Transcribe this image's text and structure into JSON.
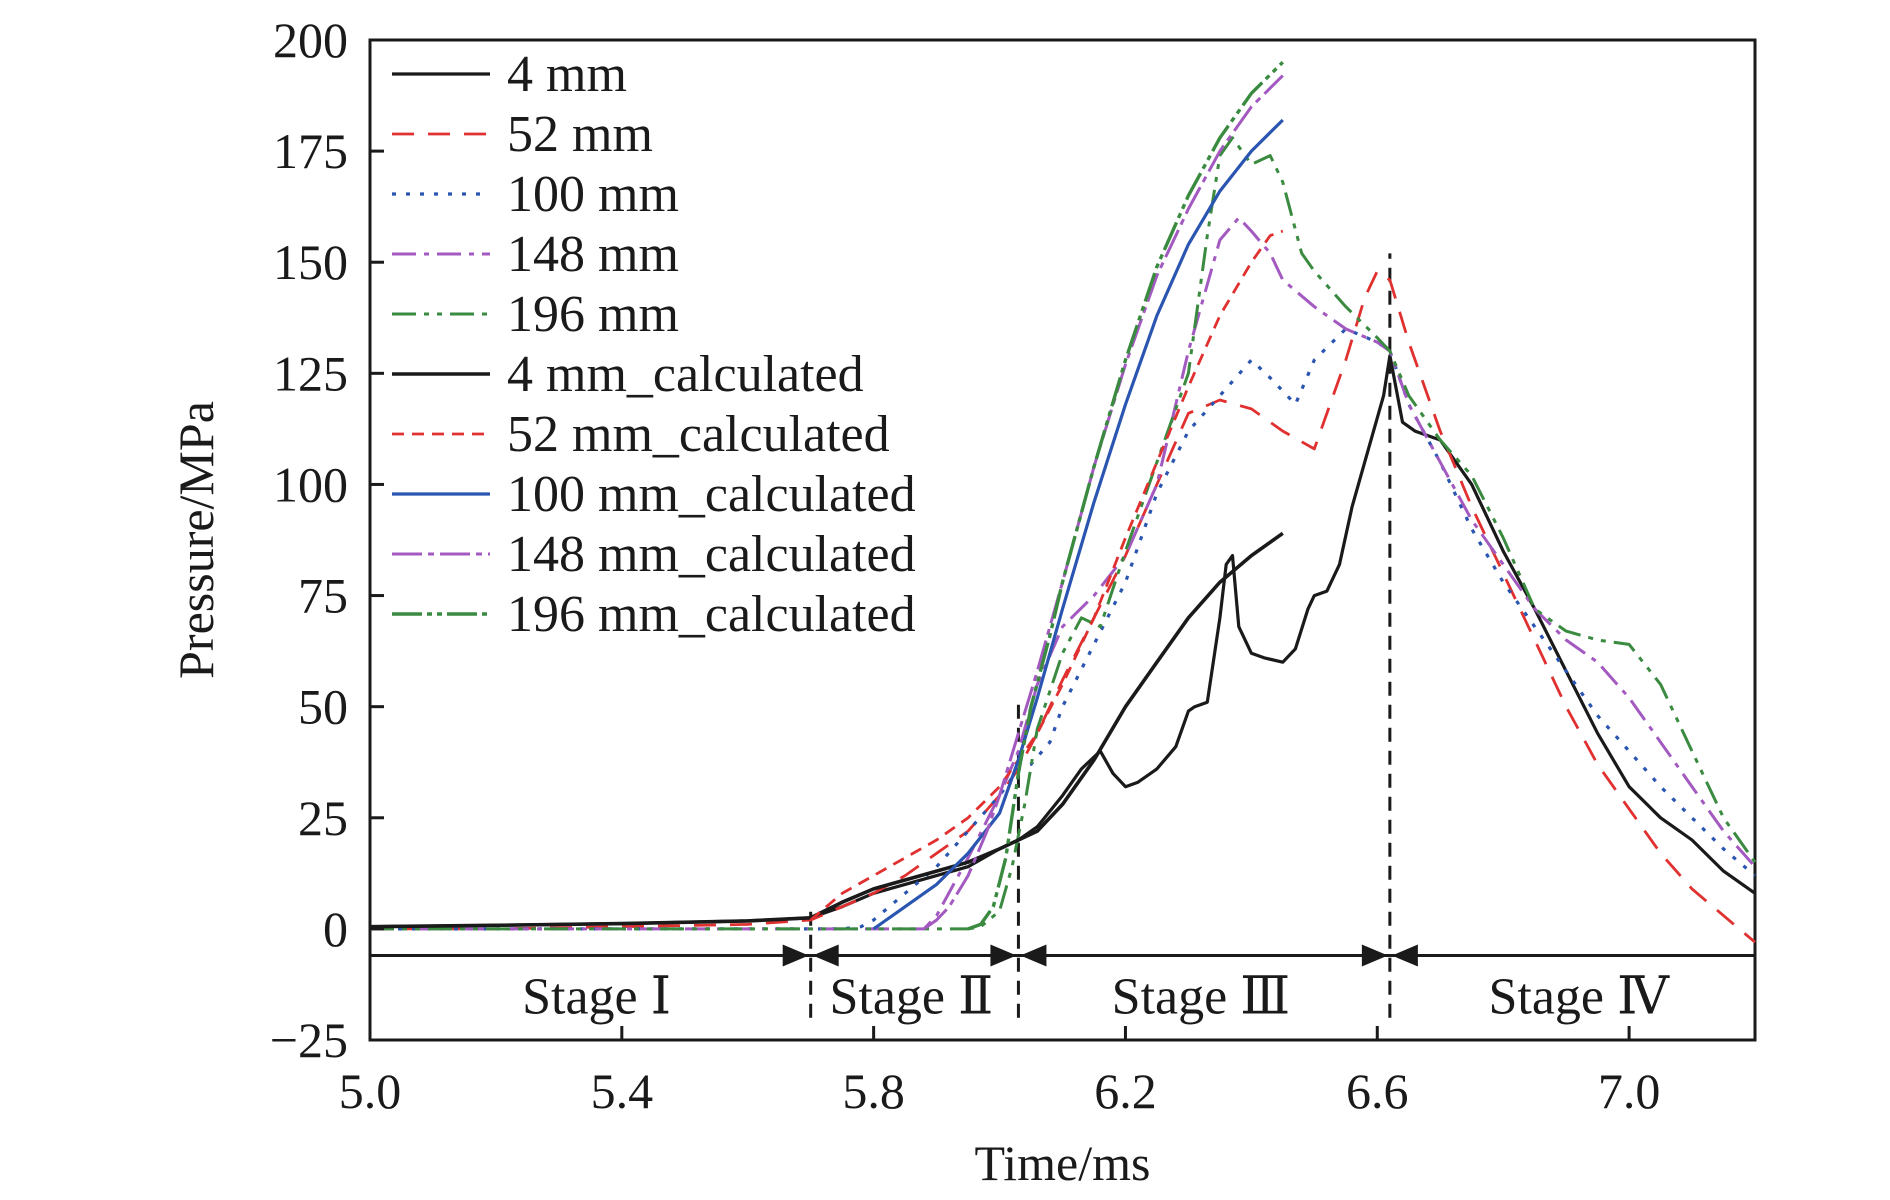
{
  "chart_data": {
    "type": "line",
    "xlabel": "Time/ms",
    "ylabel": "Pressure/MPa",
    "xlim": [
      5.0,
      7.2
    ],
    "ylim": [
      -25,
      200
    ],
    "xticks": [
      "5.0",
      "5.4",
      "5.8",
      "6.2",
      "6.6",
      "7.0"
    ],
    "xtick_values": [
      5.0,
      5.4,
      5.8,
      6.2,
      6.6,
      7.0
    ],
    "yticks": [
      "200",
      "175",
      "150",
      "125",
      "100",
      "75",
      "50",
      "25",
      "0",
      "−25"
    ],
    "ytick_values": [
      200,
      175,
      150,
      125,
      100,
      75,
      50,
      25,
      0,
      -25
    ],
    "grid": false,
    "legend_position": "top-left",
    "stages": {
      "boundaries": [
        5.7,
        6.03,
        6.62
      ],
      "arrow_y": -6,
      "labels": [
        {
          "text": "Stage Ⅰ",
          "x": 5.36
        },
        {
          "text": "Stage Ⅱ",
          "x": 5.86
        },
        {
          "text": "Stage Ⅲ",
          "x": 6.32
        },
        {
          "text": "Stage Ⅳ",
          "x": 6.92
        }
      ]
    },
    "vlines": [
      {
        "x": 5.7,
        "y_from": -20,
        "y_to": 5
      },
      {
        "x": 6.03,
        "y_from": -20,
        "y_to": 52
      },
      {
        "x": 6.62,
        "y_from": -20,
        "y_to": 152
      }
    ],
    "series": [
      {
        "name": "4 mm",
        "color": "#1a1a1a",
        "dash": "",
        "width": 3.2,
        "x": [
          5.0,
          5.2,
          5.4,
          5.6,
          5.7,
          5.75,
          5.8,
          5.85,
          5.9,
          5.95,
          6.0,
          6.03,
          6.06,
          6.1,
          6.13,
          6.16,
          6.18,
          6.2,
          6.22,
          6.25,
          6.28,
          6.3,
          6.31,
          6.33,
          6.35,
          6.36,
          6.37,
          6.38,
          6.4,
          6.42,
          6.45,
          6.47,
          6.49,
          6.5,
          6.52,
          6.54,
          6.56,
          6.58,
          6.6,
          6.61,
          6.62,
          6.64,
          6.66,
          6.7,
          6.75,
          6.8,
          6.85,
          6.9,
          6.95,
          7.0,
          7.05,
          7.1,
          7.15,
          7.2
        ],
        "y": [
          0.5,
          0.8,
          1.2,
          1.8,
          2.5,
          5,
          8,
          10,
          12,
          14,
          18,
          20,
          23,
          30,
          36,
          40,
          35,
          32,
          33,
          36,
          41,
          49,
          50,
          51,
          70,
          82,
          84,
          68,
          62,
          61,
          60,
          63,
          72,
          75,
          76,
          82,
          95,
          105,
          115,
          120,
          129,
          114,
          112,
          110,
          100,
          85,
          72,
          58,
          44,
          32,
          25,
          20,
          13,
          8
        ]
      },
      {
        "name": "52 mm",
        "color": "#e03030",
        "dash": "22,14",
        "width": 2.8,
        "x": [
          5.0,
          5.2,
          5.4,
          5.6,
          5.7,
          5.75,
          5.8,
          5.85,
          5.9,
          5.95,
          6.0,
          6.03,
          6.06,
          6.1,
          6.15,
          6.2,
          6.25,
          6.3,
          6.35,
          6.4,
          6.45,
          6.5,
          6.55,
          6.58,
          6.6,
          6.62,
          6.65,
          6.7,
          6.75,
          6.8,
          6.85,
          6.9,
          6.95,
          7.0,
          7.05,
          7.1,
          7.15,
          7.2
        ],
        "y": [
          0,
          0,
          0.5,
          1,
          2,
          5,
          8,
          12,
          17,
          22,
          30,
          36,
          44,
          56,
          70,
          84,
          100,
          116,
          119,
          117,
          112,
          108,
          128,
          142,
          148,
          146,
          132,
          112,
          95,
          80,
          65,
          50,
          37,
          27,
          17,
          9,
          3,
          -3
        ]
      },
      {
        "name": "100 mm",
        "color": "#2a55b0",
        "dash": "4,10",
        "width": 3.2,
        "x": [
          5.0,
          5.2,
          5.4,
          5.6,
          5.7,
          5.75,
          5.78,
          5.8,
          5.85,
          5.9,
          5.95,
          6.0,
          6.03,
          6.05,
          6.08,
          6.1,
          6.15,
          6.2,
          6.25,
          6.3,
          6.35,
          6.4,
          6.43,
          6.47,
          6.5,
          6.55,
          6.6,
          6.62,
          6.65,
          6.7,
          6.75,
          6.8,
          6.85,
          6.9,
          6.95,
          7.0,
          7.05,
          7.1,
          7.15,
          7.2
        ],
        "y": [
          0,
          0,
          0,
          0,
          0,
          0,
          0.5,
          2,
          8,
          14,
          22,
          30,
          36,
          37,
          42,
          50,
          64,
          78,
          98,
          112,
          120,
          128,
          124,
          118,
          128,
          135,
          132,
          130,
          118,
          105,
          90,
          78,
          68,
          58,
          48,
          40,
          32,
          25,
          18,
          12
        ]
      },
      {
        "name": "148 mm",
        "color": "#a35ac0",
        "dash": "24,8,5,8",
        "width": 3.0,
        "x": [
          5.0,
          5.2,
          5.4,
          5.6,
          5.7,
          5.75,
          5.8,
          5.85,
          5.88,
          5.9,
          5.95,
          6.0,
          6.03,
          6.06,
          6.1,
          6.15,
          6.2,
          6.25,
          6.3,
          6.35,
          6.38,
          6.4,
          6.43,
          6.45,
          6.5,
          6.55,
          6.6,
          6.62,
          6.65,
          6.7,
          6.75,
          6.8,
          6.85,
          6.9,
          6.95,
          7.0,
          7.05,
          7.1,
          7.15,
          7.2
        ],
        "y": [
          0,
          0,
          0,
          0,
          0,
          0,
          0,
          0,
          0,
          3,
          16,
          30,
          40,
          55,
          68,
          75,
          84,
          100,
          130,
          155,
          160,
          157,
          152,
          146,
          140,
          135,
          132,
          130,
          118,
          105,
          92,
          82,
          72,
          65,
          60,
          52,
          42,
          32,
          22,
          14
        ]
      },
      {
        "name": "196 mm",
        "color": "#3a8a40",
        "dash": "24,8,5,8,5,8",
        "width": 3.0,
        "x": [
          5.0,
          5.2,
          5.4,
          5.6,
          5.7,
          5.8,
          5.9,
          5.95,
          5.97,
          6.0,
          6.02,
          6.04,
          6.06,
          6.1,
          6.13,
          6.16,
          6.2,
          6.25,
          6.3,
          6.33,
          6.35,
          6.37,
          6.4,
          6.43,
          6.45,
          6.48,
          6.5,
          6.55,
          6.6,
          6.62,
          6.65,
          6.7,
          6.75,
          6.8,
          6.85,
          6.9,
          6.95,
          7.0,
          7.05,
          7.1,
          7.15,
          7.2
        ],
        "y": [
          0,
          0,
          0,
          0,
          0,
          0,
          0,
          0,
          0.5,
          4,
          14,
          28,
          45,
          62,
          70,
          68,
          85,
          105,
          125,
          156,
          174,
          178,
          172,
          174,
          168,
          152,
          148,
          140,
          133,
          130,
          120,
          110,
          102,
          88,
          72,
          67,
          65,
          64,
          55,
          40,
          25,
          15
        ]
      },
      {
        "name": "4 mm_calculated",
        "color": "#1a1a1a",
        "dash": "",
        "width": 3.6,
        "x": [
          5.0,
          5.2,
          5.4,
          5.6,
          5.7,
          5.75,
          5.8,
          5.85,
          5.9,
          5.95,
          6.0,
          6.03,
          6.06,
          6.1,
          6.15,
          6.2,
          6.25,
          6.3,
          6.35,
          6.4,
          6.45
        ],
        "y": [
          0.5,
          0.8,
          1.2,
          1.8,
          2.5,
          6,
          9,
          11,
          13,
          15,
          18,
          20,
          22,
          28,
          38,
          50,
          60,
          70,
          78,
          84,
          89
        ]
      },
      {
        "name": "52 mm_calculated",
        "color": "#e03030",
        "dash": "12,8",
        "width": 2.8,
        "x": [
          5.7,
          5.75,
          5.8,
          5.85,
          5.9,
          5.95,
          6.0,
          6.03,
          6.06,
          6.1,
          6.15,
          6.2,
          6.25,
          6.3,
          6.35,
          6.4,
          6.43,
          6.45
        ],
        "y": [
          2,
          8,
          12,
          16,
          20,
          25,
          32,
          38,
          44,
          55,
          70,
          88,
          105,
          122,
          138,
          150,
          156,
          157
        ]
      },
      {
        "name": "100 mm_calculated",
        "color": "#2a55b0",
        "dash": "",
        "width": 3.2,
        "x": [
          5.8,
          5.82,
          5.85,
          5.9,
          5.95,
          6.0,
          6.03,
          6.06,
          6.1,
          6.15,
          6.2,
          6.25,
          6.3,
          6.35,
          6.4,
          6.45
        ],
        "y": [
          0,
          2,
          5,
          10,
          17,
          26,
          38,
          52,
          72,
          96,
          118,
          138,
          154,
          166,
          175,
          182
        ]
      },
      {
        "name": "148 mm_calculated",
        "color": "#a35ac0",
        "dash": "30,6,6,6",
        "width": 3.0,
        "x": [
          5.88,
          5.9,
          5.92,
          5.95,
          5.98,
          6.0,
          6.03,
          6.06,
          6.1,
          6.15,
          6.2,
          6.25,
          6.3,
          6.35,
          6.4,
          6.45
        ],
        "y": [
          0,
          2,
          5,
          12,
          22,
          30,
          44,
          58,
          78,
          104,
          127,
          147,
          162,
          175,
          185,
          192
        ]
      },
      {
        "name": "196 mm_calculated",
        "color": "#3a8a40",
        "dash": "30,5,5,5,5,5",
        "width": 3.4,
        "x": [
          5.95,
          5.97,
          5.99,
          6.01,
          6.03,
          6.05,
          6.08,
          6.1,
          6.15,
          6.2,
          6.25,
          6.3,
          6.35,
          6.4,
          6.45
        ],
        "y": [
          0,
          1,
          5,
          16,
          35,
          50,
          66,
          78,
          104,
          128,
          149,
          165,
          178,
          188,
          195
        ]
      }
    ]
  }
}
